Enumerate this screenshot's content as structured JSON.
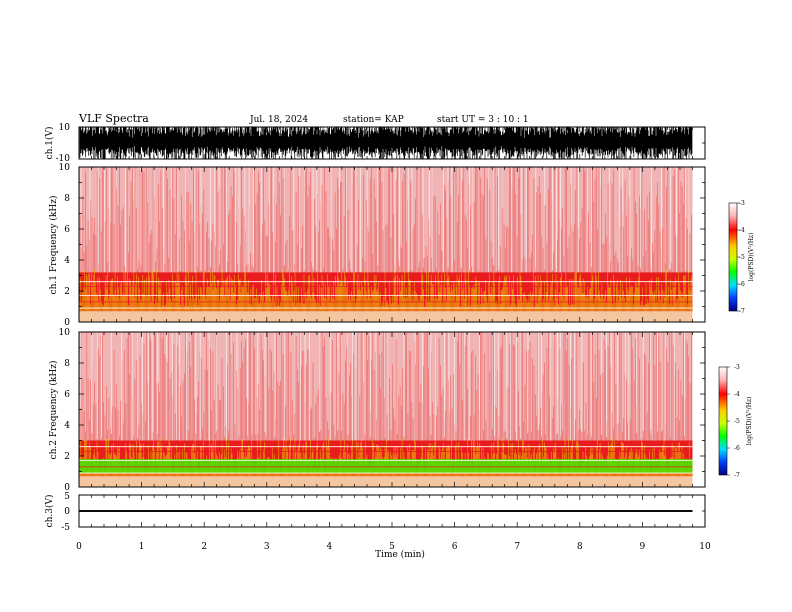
{
  "header": {
    "title": "VLF Spectra",
    "date": "Jul. 18, 2024",
    "station": "station= KAP",
    "start": "start  UT =   3 : 10 : 1"
  },
  "chart_data": [
    {
      "type": "line",
      "title": "",
      "xlabel": "",
      "ylabel": "ch.1(V)",
      "xlim": [
        0,
        10
      ],
      "ylim": [
        -10,
        10
      ],
      "yticks": [
        "10",
        "-10"
      ],
      "data_extent_min": 9.8,
      "series": [
        {
          "name": "",
          "description_values": {
            "min": -10,
            "max": 10
          }
        }
      ]
    },
    {
      "type": "heatmap",
      "xlabel": "",
      "ylabel": "ch.1 Frequency (kHz)",
      "xlim": [
        0,
        10
      ],
      "ylim": [
        0,
        10
      ],
      "yticks": [
        "0",
        "2",
        "4",
        "6",
        "8",
        "10"
      ],
      "colorbar": {
        "label": "log(PSD)(V²/Hz)",
        "range": [
          -7,
          -3
        ],
        "ticks": [
          "-3",
          "-4",
          "-5",
          "-6",
          "-7"
        ]
      },
      "bands_khz": {
        "yellow_top": 3.2,
        "green_top": 0
      }
    },
    {
      "type": "heatmap",
      "xlabel": "",
      "ylabel": "ch.2 Frequency (kHz)",
      "xlim": [
        0,
        10
      ],
      "ylim": [
        0,
        10
      ],
      "yticks": [
        "0",
        "2",
        "4",
        "6",
        "8",
        "10"
      ],
      "colorbar": {
        "label": "log(PSD)(V²/Hz)",
        "range": [
          -7,
          -3
        ],
        "ticks": [
          "-3",
          "-4",
          "-5",
          "-6",
          "-7"
        ]
      },
      "bands_khz": {
        "yellow_top": 3.0,
        "green_top": 1.8
      }
    },
    {
      "type": "line",
      "xlabel": "Time (min)",
      "ylabel": "ch.3(V)",
      "xlim": [
        0,
        10
      ],
      "ylim": [
        -5,
        5
      ],
      "yticks": [
        "5",
        "0",
        "-5"
      ],
      "xticks": [
        "0",
        "1",
        "2",
        "3",
        "4",
        "5",
        "6",
        "7",
        "8",
        "9",
        "10"
      ],
      "series": [
        {
          "name": "",
          "constant_band": [
            -0.3,
            0.3
          ]
        }
      ]
    }
  ],
  "colors": {
    "spectrum_bg": "#f0b4b4",
    "spectrum_red": "#e81c1c",
    "spectrum_yellow": "#ecec00",
    "spectrum_green": "#46e600",
    "trace": "#000000"
  }
}
